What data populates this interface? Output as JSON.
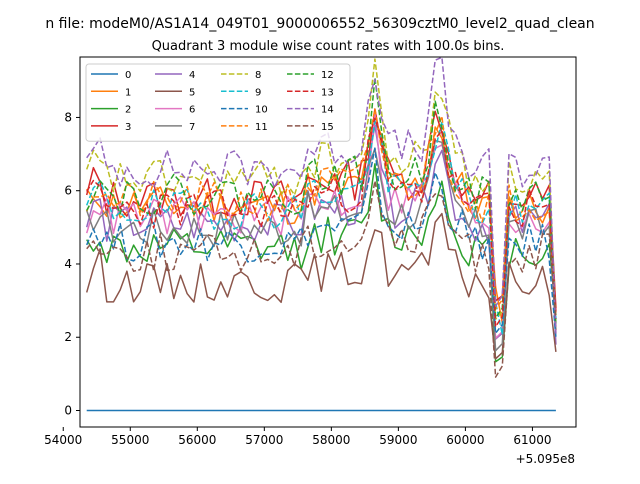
{
  "chart_data": {
    "type": "line",
    "suptitle": "n file: modeM0/AS1A14_049T01_9000006552_56309cztM0_level2_quad_clean",
    "title": "Quadrant 3 module wise count rates with 100.0s bins.",
    "xlabel": "",
    "ylabel": "",
    "x_offset_label": "+5.095e8",
    "xlim": [
      54250,
      61650
    ],
    "ylim": [
      -0.45,
      9.65
    ],
    "x_ticks": [
      54000,
      55000,
      56000,
      57000,
      58000,
      59000,
      60000,
      61000
    ],
    "x_tick_labels": [
      "54000",
      "55000",
      "56000",
      "57000",
      "58000",
      "59000",
      "60000",
      "61000"
    ],
    "y_ticks": [
      0,
      2,
      4,
      6,
      8
    ],
    "y_tick_labels": [
      "0",
      "2",
      "4",
      "6",
      "8"
    ],
    "grid": false,
    "legend_position": "top-left",
    "legend_columns": 4,
    "x_start": 54350,
    "x_step": 100,
    "points": 71,
    "series": [
      {
        "name": "0",
        "color": "#1f77b4",
        "dash": "solid",
        "type": "constant",
        "base": 0,
        "seed": 0
      },
      {
        "name": "1",
        "color": "#ff7f0e",
        "dash": "solid",
        "type": "sim",
        "base": 5.6,
        "seed": 11,
        "drop": 2.7,
        "end": 2.2
      },
      {
        "name": "2",
        "color": "#2ca02c",
        "dash": "solid",
        "type": "sim",
        "base": 4.4,
        "seed": 12,
        "drop": 3.4,
        "end": 2.6
      },
      {
        "name": "3",
        "color": "#d62728",
        "dash": "solid",
        "type": "sim",
        "base": 5.8,
        "seed": 13,
        "drop": 3.0,
        "end": 2.8
      },
      {
        "name": "4",
        "color": "#9467bd",
        "dash": "solid",
        "type": "sim",
        "base": 5.1,
        "seed": 14,
        "drop": 3.2,
        "end": 1.8
      },
      {
        "name": "5",
        "color": "#8c564b",
        "dash": "solid",
        "type": "sim",
        "base": 3.5,
        "seed": 15,
        "drop": 2.0,
        "end": 1.6
      },
      {
        "name": "6",
        "color": "#e377c2",
        "dash": "solid",
        "type": "sim",
        "base": 5.3,
        "seed": 16,
        "drop": 3.1,
        "end": 2.3
      },
      {
        "name": "7",
        "color": "#7f7f7f",
        "dash": "solid",
        "type": "sim",
        "base": 5.0,
        "seed": 17,
        "drop": 3.0,
        "end": 2.2
      },
      {
        "name": "8",
        "color": "#bcbd22",
        "dash": "dashed",
        "type": "sim",
        "base": 6.3,
        "seed": 18,
        "drop": 3.3,
        "end": 2.4
      },
      {
        "name": "9",
        "color": "#17becf",
        "dash": "dashed",
        "type": "sim",
        "base": 5.5,
        "seed": 19,
        "drop": 3.0,
        "end": 2.5
      },
      {
        "name": "10",
        "color": "#1f77b4",
        "dash": "dashed",
        "type": "sim",
        "base": 4.6,
        "seed": 20,
        "drop": 2.8,
        "end": 2.0
      },
      {
        "name": "11",
        "color": "#ff7f0e",
        "dash": "dashed",
        "type": "sim",
        "base": 5.7,
        "seed": 21,
        "drop": 3.1,
        "end": 2.6
      },
      {
        "name": "12",
        "color": "#2ca02c",
        "dash": "dashed",
        "type": "sim",
        "base": 5.9,
        "seed": 22,
        "drop": 3.4,
        "end": 2.3
      },
      {
        "name": "13",
        "color": "#d62728",
        "dash": "dashed",
        "type": "sim",
        "base": 5.5,
        "seed": 23,
        "drop": 3.1,
        "end": 2.7
      },
      {
        "name": "14",
        "color": "#9467bd",
        "dash": "dashed",
        "type": "sim",
        "base": 6.6,
        "seed": 24,
        "drop": 3.5,
        "end": 2.1
      },
      {
        "name": "15",
        "color": "#8c564b",
        "dash": "dashed",
        "type": "sim",
        "base": 4.3,
        "seed": 25,
        "drop": 3.0,
        "end": 2.5
      }
    ]
  }
}
